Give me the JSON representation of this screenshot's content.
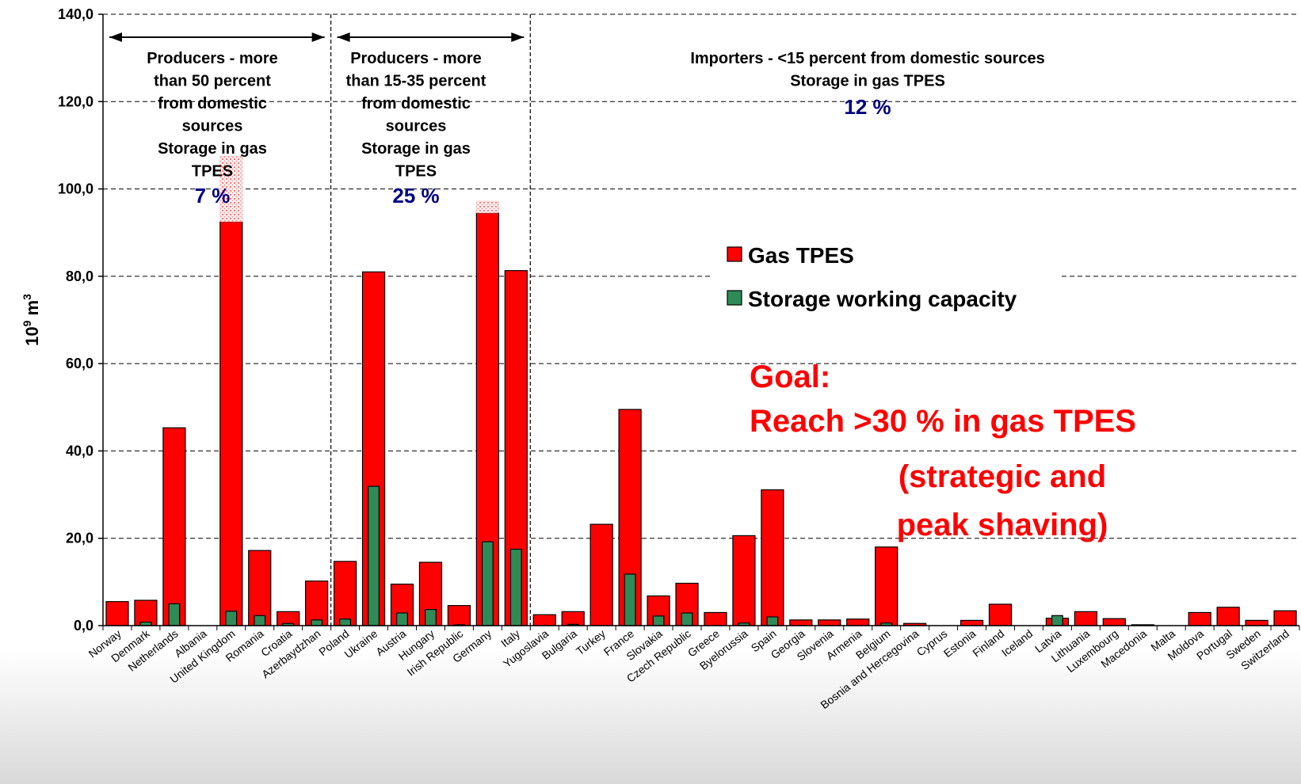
{
  "chart_data": {
    "type": "bar",
    "ylabel": "10",
    "ylabel_exp": "9",
    "ylabel_unit": "m",
    "ylabel_unit_exp": "3",
    "ylim": [
      0,
      140
    ],
    "yticks": [
      "0,0",
      "20,0",
      "40,0",
      "60,0",
      "80,0",
      "100,0",
      "120,0",
      "140,0"
    ],
    "grid": true,
    "legend_position": "right-center",
    "categories": [
      "Norway",
      "Denmark",
      "Netherlands",
      "Albania",
      "United Kingdom",
      "Romania",
      "Croatia",
      "Azerbaydzhan",
      "Poland",
      "Ukraine",
      "Austria",
      "Hungary",
      "Irish Republic",
      "Germany",
      "Italy",
      "Yugoslavia",
      "Bulgaria",
      "Turkey",
      "France",
      "Slovakia",
      "Czech Republic",
      "Greece",
      "Byelorussia",
      "Spain",
      "Georgia",
      "Slovenia",
      "Armenia",
      "Belgium",
      "Bosnia and Hercegovina",
      "Cyprus",
      "Estonia",
      "Finland",
      "Iceland",
      "Latvia",
      "Lithuania",
      "Luxembourg",
      "Macedonia",
      "Malta",
      "Moldova",
      "Portugal",
      "Sweden",
      "Switzerland"
    ],
    "series": [
      {
        "name": "Gas TPES",
        "color": "#ff0000",
        "values": [
          5.5,
          5.8,
          45.3,
          0,
          92.5,
          17.2,
          3.2,
          10.2,
          14.7,
          81.0,
          9.5,
          14.5,
          4.6,
          94.5,
          81.3,
          2.5,
          3.2,
          23.2,
          49.5,
          6.8,
          9.7,
          3.0,
          20.6,
          31.1,
          1.3,
          1.3,
          1.5,
          18.0,
          0.5,
          0,
          1.2,
          4.9,
          0,
          1.7,
          3.2,
          1.6,
          0.2,
          0,
          3.0,
          4.2,
          1.2,
          3.4
        ]
      },
      {
        "name": "Storage working capacity",
        "color": "#2e8b57",
        "values": [
          0,
          0.8,
          5.0,
          0,
          3.3,
          2.3,
          0.5,
          1.3,
          1.5,
          31.9,
          2.9,
          3.7,
          0.2,
          19.2,
          17.5,
          0,
          0.3,
          0,
          11.8,
          2.2,
          2.9,
          0,
          0.6,
          2.0,
          0,
          0,
          0,
          0.6,
          0,
          0,
          0,
          0,
          0,
          2.3,
          0,
          0,
          0,
          0,
          0,
          0,
          0,
          0
        ]
      }
    ],
    "hatched_extensions": [
      {
        "category": "United Kingdom",
        "from": 92.5,
        "to": 107.5
      },
      {
        "category": "Germany",
        "from": 94.5,
        "to": 97.2
      }
    ],
    "groups": [
      {
        "lines": [
          "Producers - more",
          "than 50 percent",
          "from domestic",
          "sources",
          "Storage in gas",
          "TPES"
        ],
        "percent": "7 %",
        "range": [
          "Norway",
          "Azerbaydzhan"
        ]
      },
      {
        "lines": [
          "Producers - more",
          "than 15-35 percent",
          "from domestic",
          "sources",
          "Storage in gas",
          "TPES"
        ],
        "percent": "25 %",
        "range": [
          "Poland",
          "Italy"
        ]
      },
      {
        "lines": [
          "Importers - <15 percent from domestic sources",
          "Storage in gas TPES"
        ],
        "percent": "12 %",
        "range": [
          "Yugoslavia",
          "Switzerland"
        ]
      }
    ],
    "annotation": {
      "lines": [
        "Goal:",
        "Reach >30 % in gas TPES",
        "(strategic and",
        "peak shaving)"
      ],
      "color": "#ff0000"
    }
  }
}
